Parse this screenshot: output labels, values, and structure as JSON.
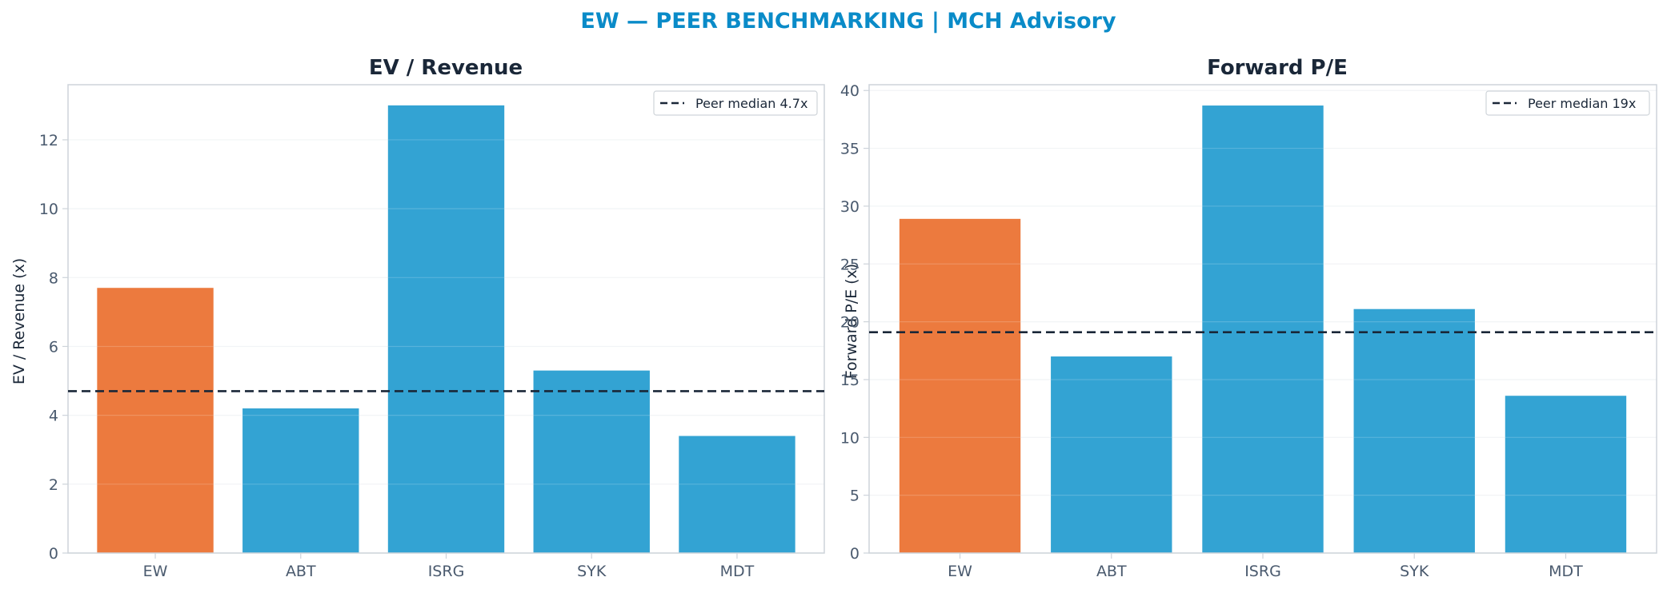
{
  "suptitle": "EW — PEER BENCHMARKING | MCH Advisory",
  "colors": {
    "title_accent": "#0a8bc8",
    "highlight": "#ec7a3e",
    "peer": "#33a3d3",
    "median_line": "#1a2738",
    "spine": "#cdd3da",
    "grid": "#f0f2f4"
  },
  "chart_data": [
    {
      "type": "bar",
      "title": "EV / Revenue",
      "ylabel": "EV / Revenue (x)",
      "categories": [
        "EW",
        "ABT",
        "ISRG",
        "SYK",
        "MDT"
      ],
      "values": [
        7.7,
        4.2,
        13.0,
        5.3,
        3.4
      ],
      "highlight": "EW",
      "ylim": [
        0,
        13.6
      ],
      "yticks": [
        0,
        2,
        4,
        6,
        8,
        10,
        12
      ],
      "median": {
        "value": 4.7,
        "label": "Peer median 4.7x"
      },
      "legend": "top-right",
      "grid": true
    },
    {
      "type": "bar",
      "title": "Forward P/E",
      "ylabel": "Forward P/E (x)",
      "categories": [
        "EW",
        "ABT",
        "ISRG",
        "SYK",
        "MDT"
      ],
      "values": [
        28.9,
        17.0,
        38.7,
        21.1,
        13.6
      ],
      "highlight": "EW",
      "ylim": [
        0,
        40.5
      ],
      "yticks": [
        0,
        5,
        10,
        15,
        20,
        25,
        30,
        35,
        40
      ],
      "median": {
        "value": 19.1,
        "label": "Peer median 19x"
      },
      "legend": "top-right",
      "grid": true
    }
  ]
}
